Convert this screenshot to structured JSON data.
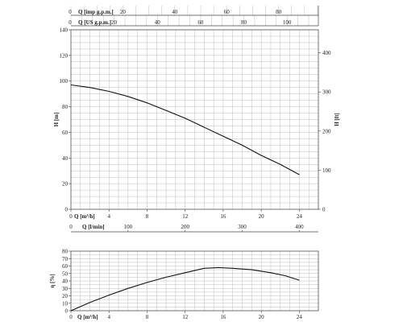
{
  "chart_data": [
    {
      "type": "line",
      "title": "",
      "xlabel": "Q [m³/h]",
      "ylabel": "H [m]",
      "ylabel_right": "H [ft]",
      "xlim": [
        0,
        26
      ],
      "ylim": [
        0,
        140
      ],
      "y2lim": [
        0,
        459
      ],
      "grid": true,
      "x_ticks": [
        0,
        4,
        8,
        12,
        16,
        20,
        24
      ],
      "y_ticks": [
        0,
        20,
        40,
        60,
        80,
        100,
        120,
        140
      ],
      "y2_ticks": [
        0,
        100,
        200,
        300,
        400
      ],
      "secondary_x_axes": [
        {
          "label": "Q [l/min]",
          "position": "bottom",
          "factor": 16.6667,
          "ticks": [
            100,
            200,
            300,
            400
          ]
        },
        {
          "label": "Q [imp g.p.m.]",
          "position": "top",
          "factor": 3.6661,
          "ticks": [
            0,
            20,
            40,
            60,
            80
          ]
        },
        {
          "label": "Q [US g.p.m.]",
          "position": "top",
          "factor": 4.4029,
          "ticks": [
            0,
            20,
            40,
            60,
            80,
            100
          ]
        }
      ],
      "series": [
        {
          "x": [
            0,
            2,
            4,
            6,
            8,
            10,
            12,
            14,
            16,
            18,
            20,
            22,
            24
          ],
          "y": [
            97,
            95,
            92,
            88,
            83,
            77,
            71,
            64,
            57,
            50,
            42,
            35,
            27
          ]
        }
      ]
    },
    {
      "type": "line",
      "title": "",
      "xlabel": "Q [m³/h]",
      "ylabel": "η [%]",
      "xlim": [
        0,
        26
      ],
      "ylim": [
        0,
        80
      ],
      "grid": true,
      "x_ticks": [
        0,
        4,
        8,
        12,
        16,
        20,
        24
      ],
      "y_ticks": [
        0,
        10,
        20,
        30,
        40,
        50,
        60,
        70,
        80
      ],
      "series": [
        {
          "x": [
            0,
            2,
            4,
            6,
            8,
            10,
            12,
            14,
            15.5,
            17,
            19,
            21,
            22.5,
            24
          ],
          "y": [
            0,
            11,
            21,
            30,
            38,
            45,
            51,
            57,
            58,
            57,
            55,
            51,
            47,
            41
          ]
        }
      ]
    }
  ]
}
